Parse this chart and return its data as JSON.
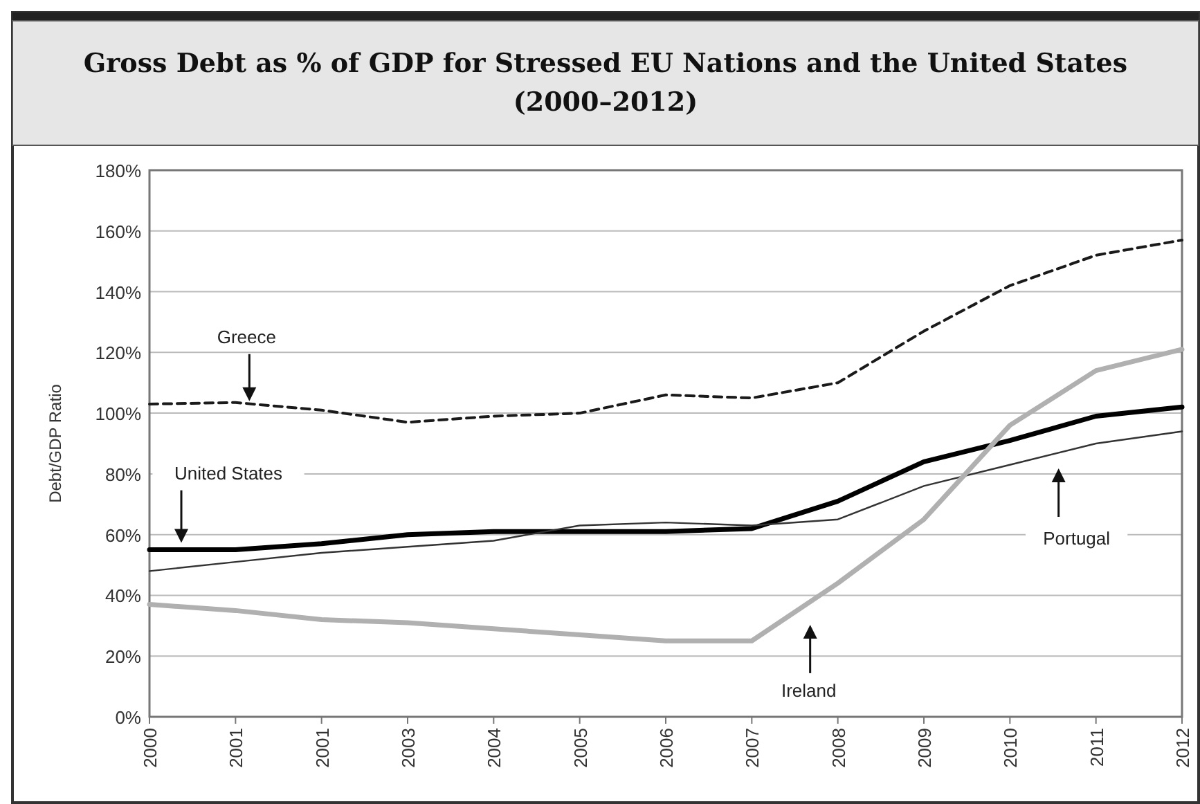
{
  "chart_data": {
    "type": "line",
    "title": "Gross Debt as % of GDP for Stressed EU Nations and the United States\n(2000–2012)",
    "ylabel": "Debt/GDP Ratio",
    "categories": [
      "2000",
      "2001",
      "2001",
      "2003",
      "2004",
      "2005",
      "2006",
      "2007",
      "2008",
      "2009",
      "2010",
      "2011",
      "2012"
    ],
    "ylim": [
      0,
      180
    ],
    "yticks": [
      {
        "value": 0,
        "label": "0%"
      },
      {
        "value": 20,
        "label": "20%"
      },
      {
        "value": 40,
        "label": "40%"
      },
      {
        "value": 60,
        "label": "60%"
      },
      {
        "value": 80,
        "label": "80%"
      },
      {
        "value": 100,
        "label": "100%"
      },
      {
        "value": 120,
        "label": "120%"
      },
      {
        "value": 140,
        "label": "140%"
      },
      {
        "value": 160,
        "label": "160%"
      },
      {
        "value": 180,
        "label": "180%"
      }
    ],
    "grid": "y",
    "marker": "none",
    "series": [
      {
        "color": "#1a1a1a",
        "line_style": "dashed",
        "values": [
          103,
          103.5,
          101,
          97,
          99,
          100,
          106,
          105,
          110,
          127,
          142,
          152,
          157
        ]
      },
      {
        "color": "#000000",
        "line_style": "solid",
        "values": [
          55,
          55,
          57,
          60,
          61,
          61,
          61,
          62,
          71,
          84,
          91,
          99,
          102
        ]
      },
      {
        "color": "#333333",
        "line_style": "solid",
        "values": [
          48,
          51,
          54,
          56,
          58,
          63,
          64,
          63,
          65,
          76,
          83,
          90,
          94
        ]
      },
      {
        "color": "#b0b0b0",
        "line_style": "solid",
        "values": [
          37,
          35,
          32,
          31,
          29,
          27,
          25,
          25,
          44,
          65,
          96,
          114,
          121
        ]
      }
    ],
    "annotations": [
      "Greece",
      "United States",
      "Portugal",
      "Ireland"
    ]
  }
}
